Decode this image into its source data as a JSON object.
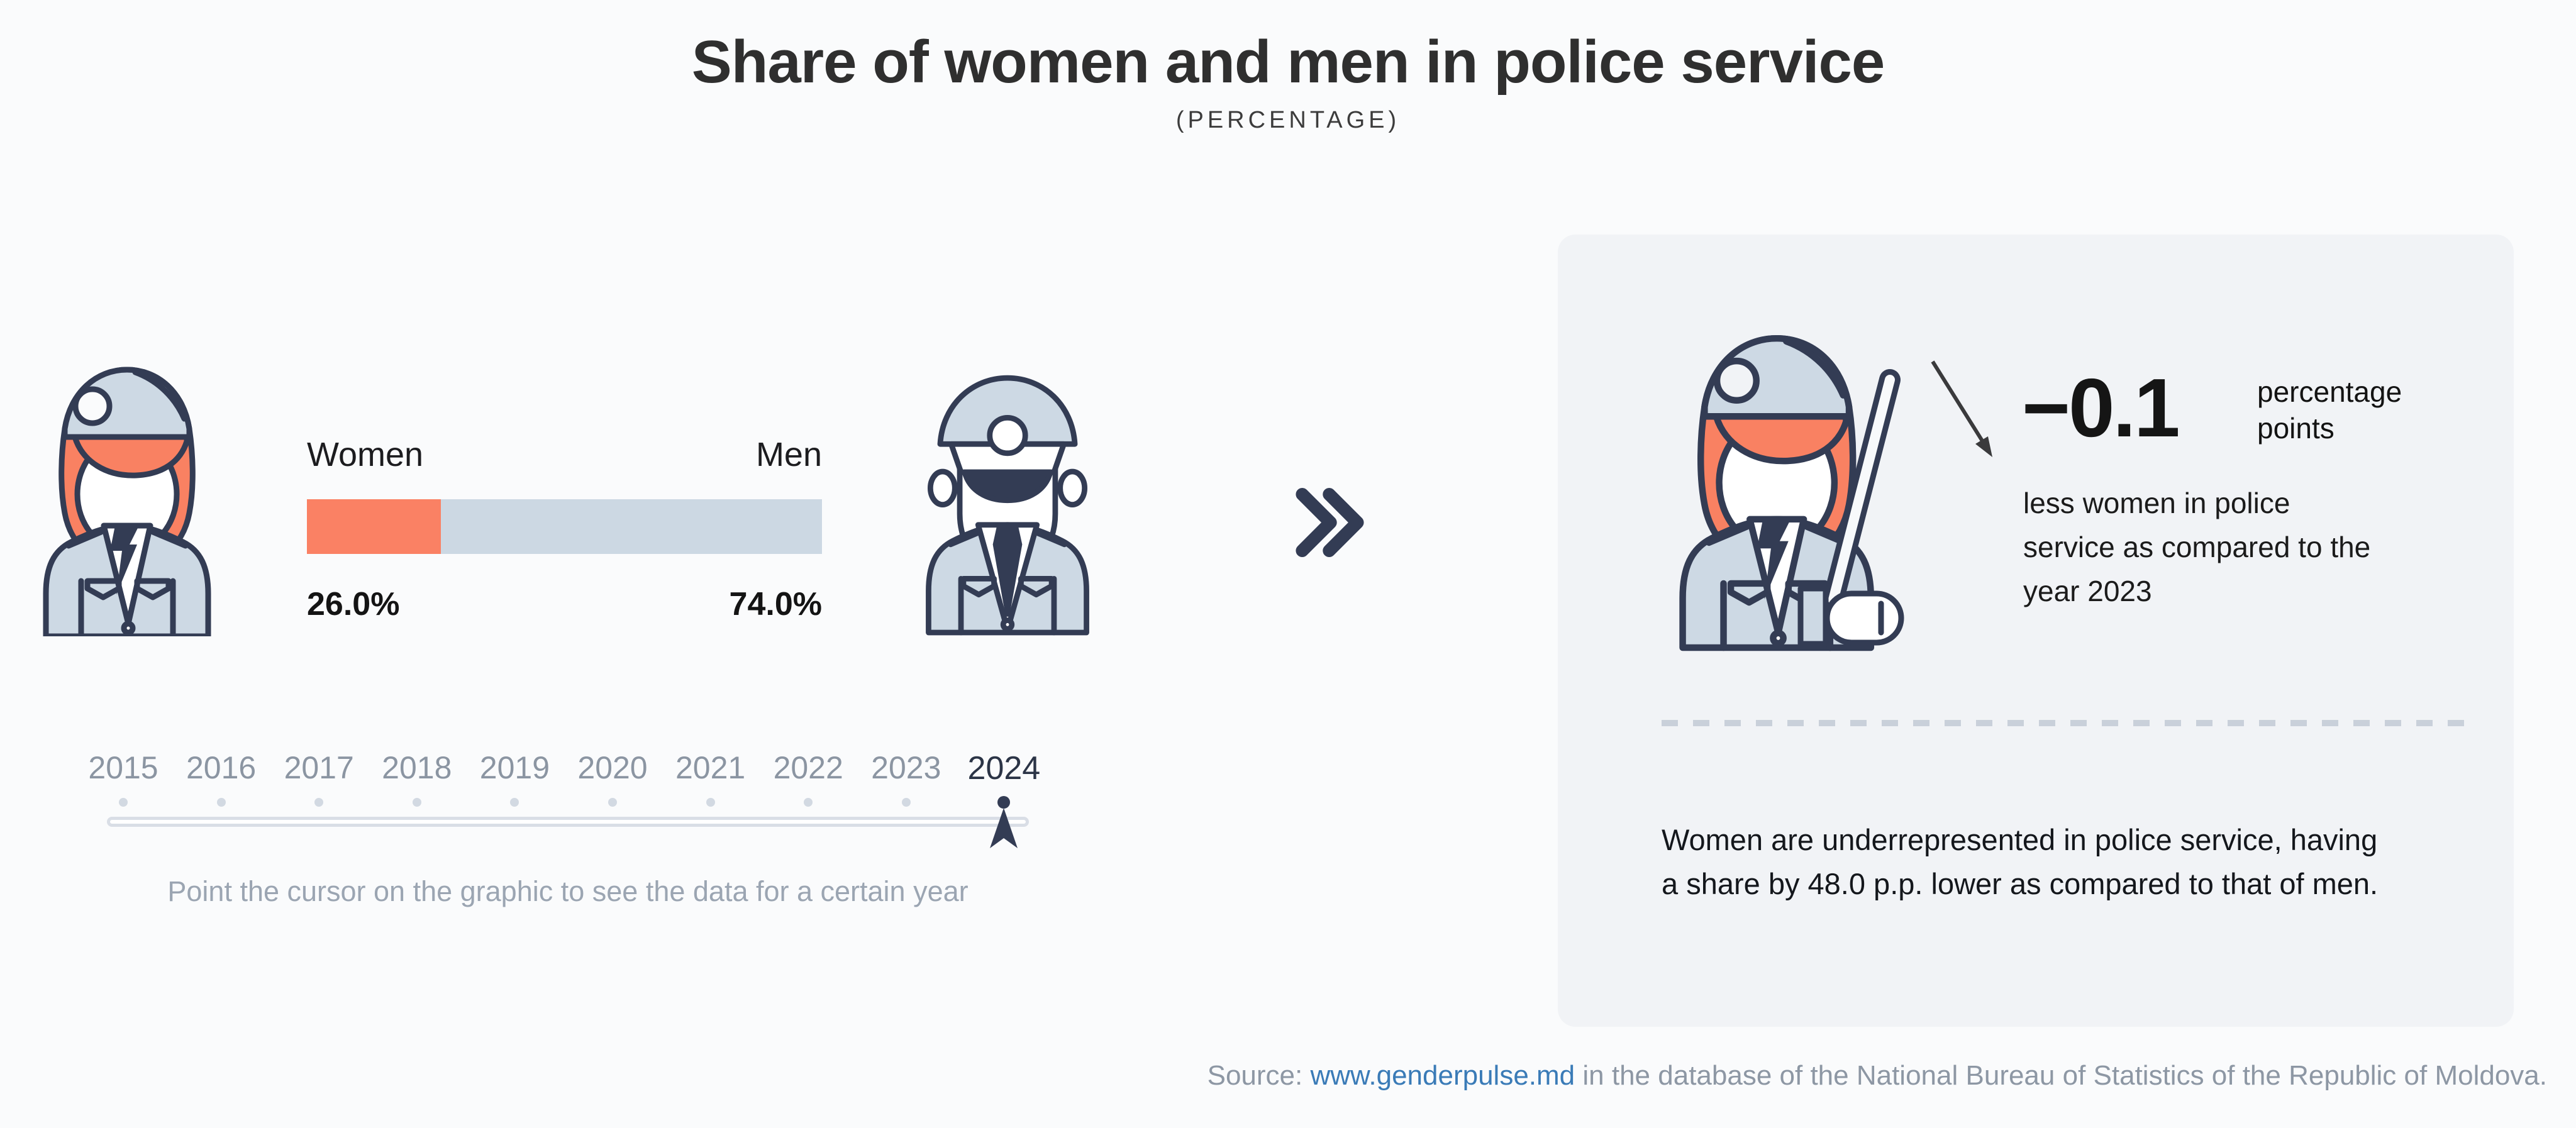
{
  "page": {
    "background": "#fafbfc"
  },
  "header": {
    "title": "Share of women and men in police service",
    "subtitle": "(PERCENTAGE)"
  },
  "chart": {
    "women_label": "Women",
    "men_label": "Men",
    "women_value": "26.0%",
    "men_value": "74.0%",
    "women_pct": 26,
    "men_pct": 74,
    "women_color": "#fa8164",
    "men_color": "#ccd8e3"
  },
  "timeline": {
    "years": [
      "2015",
      "2016",
      "2017",
      "2018",
      "2019",
      "2020",
      "2021",
      "2022",
      "2023",
      "2024"
    ],
    "selected_year": "2024",
    "hint": "Point the cursor on the graphic to see the data for a certain year"
  },
  "panel": {
    "delta_value": "−0.1",
    "delta_unit": "percentage points",
    "delta_text": "less women in police service as compared to the year 2023",
    "summary": "Women are underrepresented in police service, having a share by 48.0 p.p. lower as compared to that of men."
  },
  "footer": {
    "prefix": "Source:",
    "link_text": "www.genderpulse.md",
    "suffix": "in the database of the National Bureau of Statistics of the Republic of Moldova."
  },
  "icons": {
    "left": "policewoman-icon",
    "right": "policeman-icon",
    "panel": "policewoman-with-baton-icon",
    "arrow": "decrease-arrow-icon",
    "chevron": "double-chevron-right-icon",
    "marker": "timeline-cursor-marker"
  },
  "colors": {
    "accent_orange": "#fa8164",
    "light_blue": "#ccd8e3",
    "navy_outline": "#333c54",
    "panel_background": "#f1f3f6",
    "link_blue": "#3a7bb7"
  },
  "chart_data": {
    "type": "bar",
    "stacked": true,
    "orientation": "horizontal",
    "title": "Share of women and men in police service",
    "subtitle": "(PERCENTAGE)",
    "categories": [
      "Women",
      "Men"
    ],
    "values": [
      26.0,
      74.0
    ],
    "value_labels": [
      "26.0%",
      "74.0%"
    ],
    "unit": "percent",
    "series_colors": [
      "#fa8164",
      "#ccd8e3"
    ],
    "x_axis_years": [
      "2015",
      "2016",
      "2017",
      "2018",
      "2019",
      "2020",
      "2021",
      "2022",
      "2023",
      "2024"
    ],
    "selected_year": "2024",
    "annotations": {
      "change_vs_2023_pp": -0.1,
      "women_minus_men_pp": -48.0
    }
  }
}
